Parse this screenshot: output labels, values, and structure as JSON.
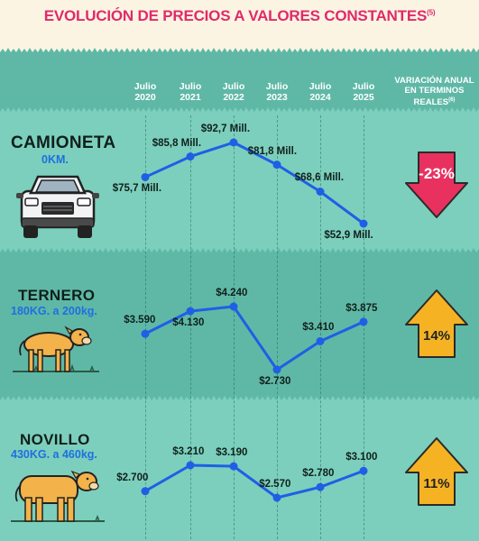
{
  "title": "EVOLUCIÓN DE PRECIOS A VALORES CONSTANTES",
  "title_note": "(5)",
  "years": [
    "Julio 2020",
    "Julio 2021",
    "Julio 2022",
    "Julio 2023",
    "Julio 2024",
    "Julio 2025"
  ],
  "variation_header": "VARIACIÓN ANUAL EN TERMINOS REALES",
  "variation_note": "(6)",
  "colors": {
    "title": "#e02a6b",
    "line": "#1f5fe6",
    "subtitle": "#1f6fe0",
    "down_arrow": "#e8315f",
    "up_arrow": "#f5b324"
  },
  "chart_data": [
    {
      "type": "line",
      "name": "CAMIONETA",
      "subtitle": "0KM.",
      "icon": "pickup-truck-icon",
      "x": [
        "Julio 2020",
        "Julio 2021",
        "Julio 2022",
        "Julio 2023",
        "Julio 2024",
        "Julio 2025"
      ],
      "values": [
        75.7,
        85.8,
        92.7,
        81.8,
        68.6,
        52.9
      ],
      "labels": [
        "$75,7 Mill.",
        "$85,8 Mill.",
        "$92,7 Mill.",
        "$81,8 Mill.",
        "$68,6 Mill.",
        "$52,9 Mill."
      ],
      "variation": "-23%",
      "variation_direction": "down"
    },
    {
      "type": "line",
      "name": "TERNERO",
      "subtitle": "180KG. a 200kg.",
      "icon": "calf-icon",
      "x": [
        "Julio 2020",
        "Julio 2021",
        "Julio 2022",
        "Julio 2023",
        "Julio 2024",
        "Julio 2025"
      ],
      "values": [
        3590,
        4130,
        4240,
        2730,
        3410,
        3875
      ],
      "labels": [
        "$3.590",
        "$4.130",
        "$4.240",
        "$2.730",
        "$3.410",
        "$3.875"
      ],
      "variation": "14%",
      "variation_direction": "up"
    },
    {
      "type": "line",
      "name": "NOVILLO",
      "subtitle": "430KG. a 460kg.",
      "icon": "steer-icon",
      "x": [
        "Julio 2020",
        "Julio 2021",
        "Julio 2022",
        "Julio 2023",
        "Julio 2024",
        "Julio 2025"
      ],
      "values": [
        2700,
        3210,
        3190,
        2570,
        2780,
        3100
      ],
      "labels": [
        "$2.700",
        "$3.210",
        "$3.190",
        "$2.570",
        "$2.780",
        "$3.100"
      ],
      "variation": "11%",
      "variation_direction": "up"
    }
  ]
}
